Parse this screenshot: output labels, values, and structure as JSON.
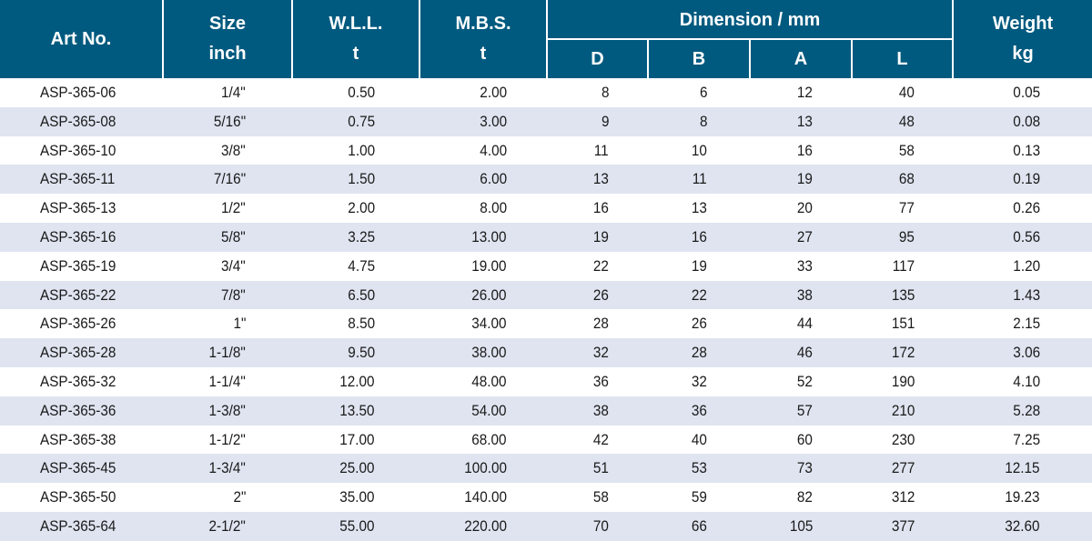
{
  "header": {
    "art_no": "Art No.",
    "size": [
      "Size",
      "inch"
    ],
    "wll": [
      "W.L.L.",
      "t"
    ],
    "mbs": [
      "M.B.S.",
      "t"
    ],
    "dimension": "Dimension / mm",
    "dims": [
      "D",
      "B",
      "A",
      "L"
    ],
    "weight": [
      "Weight",
      "kg"
    ]
  },
  "colors": {
    "header_bg": "#005a7f",
    "row_alt_bg": "#dfe4f0"
  },
  "rows": [
    [
      "ASP-365-06",
      "1/4\"",
      "0.50",
      "2.00",
      "8",
      "6",
      "12",
      "40",
      "0.05"
    ],
    [
      "ASP-365-08",
      "5/16\"",
      "0.75",
      "3.00",
      "9",
      "8",
      "13",
      "48",
      "0.08"
    ],
    [
      "ASP-365-10",
      "3/8\"",
      "1.00",
      "4.00",
      "11",
      "10",
      "16",
      "58",
      "0.13"
    ],
    [
      "ASP-365-11",
      "7/16\"",
      "1.50",
      "6.00",
      "13",
      "11",
      "19",
      "68",
      "0.19"
    ],
    [
      "ASP-365-13",
      "1/2\"",
      "2.00",
      "8.00",
      "16",
      "13",
      "20",
      "77",
      "0.26"
    ],
    [
      "ASP-365-16",
      "5/8\"",
      "3.25",
      "13.00",
      "19",
      "16",
      "27",
      "95",
      "0.56"
    ],
    [
      "ASP-365-19",
      "3/4\"",
      "4.75",
      "19.00",
      "22",
      "19",
      "33",
      "117",
      "1.20"
    ],
    [
      "ASP-365-22",
      "7/8\"",
      "6.50",
      "26.00",
      "26",
      "22",
      "38",
      "135",
      "1.43"
    ],
    [
      "ASP-365-26",
      "1\"",
      "8.50",
      "34.00",
      "28",
      "26",
      "44",
      "151",
      "2.15"
    ],
    [
      "ASP-365-28",
      "1-1/8\"",
      "9.50",
      "38.00",
      "32",
      "28",
      "46",
      "172",
      "3.06"
    ],
    [
      "ASP-365-32",
      "1-1/4\"",
      "12.00",
      "48.00",
      "36",
      "32",
      "52",
      "190",
      "4.10"
    ],
    [
      "ASP-365-36",
      "1-3/8\"",
      "13.50",
      "54.00",
      "38",
      "36",
      "57",
      "210",
      "5.28"
    ],
    [
      "ASP-365-38",
      "1-1/2\"",
      "17.00",
      "68.00",
      "42",
      "40",
      "60",
      "230",
      "7.25"
    ],
    [
      "ASP-365-45",
      "1-3/4\"",
      "25.00",
      "100.00",
      "51",
      "53",
      "73",
      "277",
      "12.15"
    ],
    [
      "ASP-365-50",
      "2\"",
      "35.00",
      "140.00",
      "58",
      "59",
      "82",
      "312",
      "19.23"
    ],
    [
      "ASP-365-64",
      "2-1/2\"",
      "55.00",
      "220.00",
      "70",
      "66",
      "105",
      "377",
      "32.60"
    ]
  ]
}
